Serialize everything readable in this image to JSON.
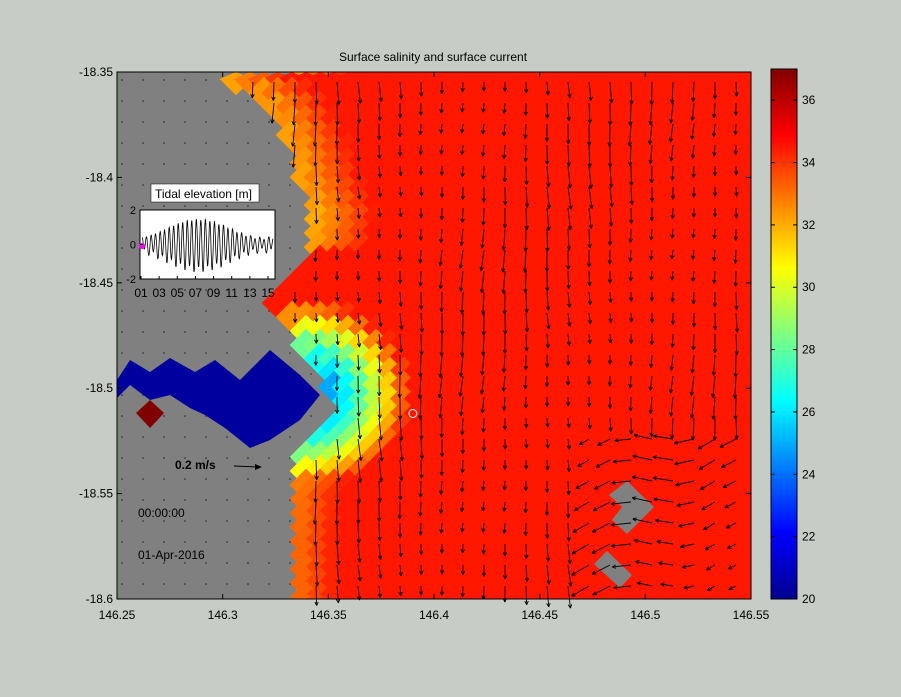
{
  "chart_data": {
    "type": "heatmap",
    "title": "Surface salinity and surface current",
    "x_ticks": [
      "146.25",
      "146.3",
      "146.35",
      "146.4",
      "146.45",
      "146.5",
      "146.55"
    ],
    "y_ticks": [
      "-18.35",
      "-18.4",
      "-18.45",
      "-18.5",
      "-18.55",
      "-18.6"
    ],
    "xlim": [
      146.25,
      146.55
    ],
    "ylim": [
      -18.6,
      -18.35
    ],
    "colorbar": {
      "ticks": [
        "20",
        "22",
        "24",
        "26",
        "28",
        "30",
        "32",
        "34",
        "36"
      ],
      "range": [
        20,
        37
      ],
      "colormap": "jet"
    },
    "land_color": "#808080",
    "scale_arrow_label": "0.2 m/s",
    "time_label": "00:00:00",
    "date_label": "01-Apr-2016",
    "marker_position": [
      146.39,
      -18.512
    ],
    "salinity_field": {
      "offshore_value": 34.5,
      "coastal_gradient": "fresh plume near river mouth around 146.33, -18.50 (approx 22-30)",
      "river_channel_value": 20.5,
      "spot_value": 37
    },
    "current_field": {
      "dominant_direction": "south",
      "typical_speed_mps": 0.18
    },
    "inset": {
      "title": "Tidal elevation [m]",
      "y_ticks": [
        "2",
        "0",
        "-2"
      ],
      "ylim": [
        -2,
        2
      ],
      "x_ticks": [
        "01",
        "03",
        "05",
        "07",
        "09",
        "11",
        "13",
        "15"
      ],
      "series_description": "semi-diurnal tide with spring-neap modulation, amplitude up to ~1.5 m",
      "current_marker_color": "#ff00ff"
    }
  }
}
